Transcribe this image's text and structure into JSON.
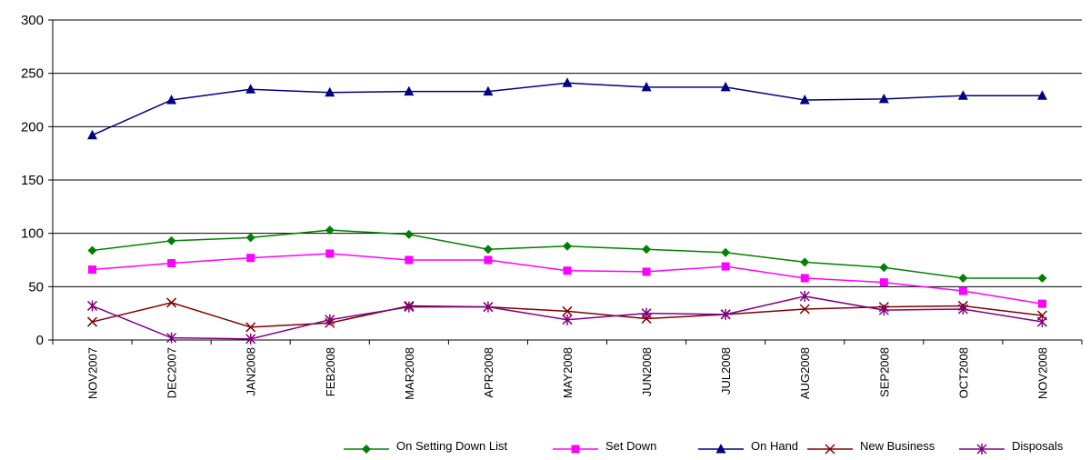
{
  "chart_data": {
    "type": "line",
    "categories": [
      "NOV2007",
      "DEC2007",
      "JAN2008",
      "FEB2008",
      "MAR2008",
      "APR2008",
      "MAY2008",
      "JUN2008",
      "JUL2008",
      "AUG2008",
      "SEP2008",
      "OCT2008",
      "NOV2008"
    ],
    "ylim": [
      0,
      300
    ],
    "yticks": [
      "0",
      "50",
      "100",
      "150",
      "200",
      "250",
      "300"
    ],
    "grid": true,
    "legend_position": "bottom-right",
    "series": [
      {
        "name": "On Setting Down List",
        "color": "#008000",
        "marker": "diamond",
        "values": [
          84,
          93,
          96,
          103,
          99,
          85,
          88,
          85,
          82,
          73,
          68,
          58,
          58
        ]
      },
      {
        "name": "Set Down",
        "color": "#ff00ff",
        "marker": "square",
        "values": [
          66,
          72,
          77,
          81,
          75,
          75,
          65,
          64,
          69,
          58,
          54,
          46,
          34
        ]
      },
      {
        "name": "On Hand",
        "color": "#000080",
        "marker": "triangle",
        "values": [
          192,
          225,
          235,
          232,
          233,
          233,
          241,
          237,
          237,
          225,
          226,
          229,
          229
        ]
      },
      {
        "name": "New Business",
        "color": "#800000",
        "marker": "x",
        "values": [
          17,
          35,
          12,
          16,
          32,
          31,
          27,
          20,
          24,
          29,
          31,
          32,
          23
        ]
      },
      {
        "name": "Disposals",
        "color": "#800080",
        "marker": "star",
        "values": [
          32,
          2,
          1,
          19,
          31,
          31,
          19,
          25,
          24,
          41,
          28,
          29,
          17
        ]
      }
    ]
  }
}
